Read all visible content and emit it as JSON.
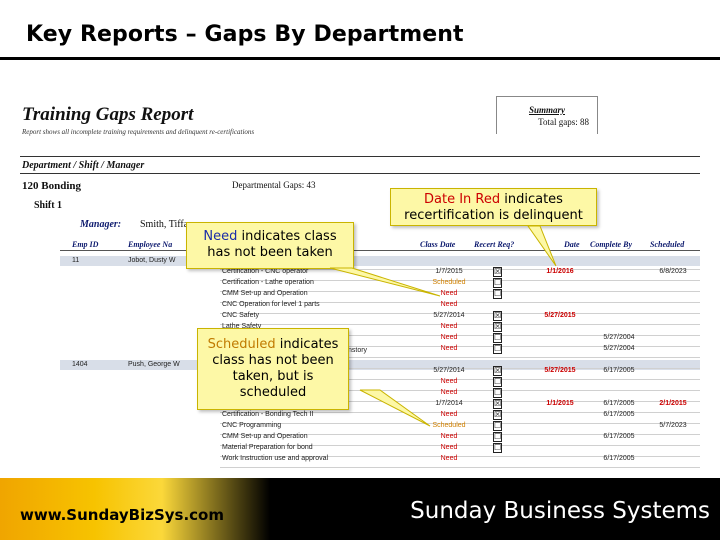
{
  "slide": {
    "title": "Key Reports – Gaps By Department"
  },
  "report": {
    "title": "Training Gaps Report",
    "subtitle": "Report shows all incomplete training requirements and delinquent re-certifications",
    "summary": {
      "title": "Summary",
      "total_gaps": "Total gaps: 88"
    },
    "group_header": "Department / Shift / Manager",
    "department": "120 Bonding",
    "department_gaps": "Departmental Gaps: 43",
    "shift": "Shift 1",
    "manager_label": "Manager:",
    "manager_name": "Smith, Tiffany",
    "columns": {
      "emp_id": "Emp ID",
      "employee_name": "Employee Na",
      "class_date": "Class Date",
      "recert_req": "Recert Req?",
      "due_date": "Date",
      "complete_by": "Complete By",
      "scheduled": "Scheduled"
    },
    "employees": [
      {
        "id": "11",
        "name": "Jobot, Dusty W"
      },
      {
        "id": "1404",
        "name": "Push, George W"
      }
    ],
    "extra_fragment": "nstory",
    "rows": [
      {
        "course": "Certification - CNC operator",
        "class_date": "1/7/2015",
        "class_style": "",
        "recert": "☒",
        "due": "1/1/2016",
        "complete_by": "",
        "scheduled": "6/8/2023",
        "sched_red": false
      },
      {
        "course": "Certification - Lathe operation",
        "class_date": "Scheduled",
        "class_style": "sched",
        "recert": "☐",
        "due": "",
        "complete_by": "",
        "scheduled": "",
        "sched_red": false
      },
      {
        "course": "CMM Set-up and Operation",
        "class_date": "Need",
        "class_style": "need",
        "recert": "☐",
        "due": "",
        "complete_by": "",
        "scheduled": "",
        "sched_red": false
      },
      {
        "course": "CNC Operation for level 1 parts",
        "class_date": "Need",
        "class_style": "need",
        "recert": "",
        "due": "",
        "complete_by": "",
        "scheduled": "",
        "sched_red": false
      },
      {
        "course": "CNC Safety",
        "class_date": "5/27/2014",
        "class_style": "",
        "recert": "☒",
        "due": "5/27/2015",
        "complete_by": "",
        "scheduled": "",
        "sched_red": false
      },
      {
        "course": "Lathe Safety",
        "class_date": "Need",
        "class_style": "need",
        "recert": "☒",
        "due": "",
        "complete_by": "",
        "scheduled": "",
        "sched_red": false
      },
      {
        "course": "",
        "class_date": "Need",
        "class_style": "need",
        "recert": "☐",
        "due": "",
        "complete_by": "5/27/2004",
        "scheduled": "",
        "sched_red": false
      },
      {
        "course": "",
        "class_date": "Need",
        "class_style": "need",
        "recert": "☐",
        "due": "",
        "complete_by": "5/27/2004",
        "scheduled": "",
        "sched_red": false
      },
      {
        "course": "",
        "class_date": "",
        "class_style": "",
        "recert": "",
        "due": "",
        "complete_by": "",
        "scheduled": "",
        "sched_red": false
      },
      {
        "course": "",
        "class_date": "5/27/2014",
        "class_style": "",
        "recert": "☒",
        "due": "5/27/2015",
        "complete_by": "6/17/2005",
        "scheduled": "",
        "sched_red": false
      },
      {
        "course": "",
        "class_date": "Need",
        "class_style": "need",
        "recert": "☐",
        "due": "",
        "complete_by": "",
        "scheduled": "",
        "sched_red": false
      },
      {
        "course": "",
        "class_date": "Need",
        "class_style": "need",
        "recert": "☐",
        "due": "",
        "complete_by": "",
        "scheduled": "",
        "sched_red": false
      },
      {
        "course": "Certification - Bonding Tech I",
        "class_date": "1/7/2014",
        "class_style": "",
        "recert": "☒",
        "due": "1/1/2015",
        "complete_by": "6/17/2005",
        "scheduled": "2/1/2015",
        "sched_red": true
      },
      {
        "course": "Certification - Bonding Tech II",
        "class_date": "Need",
        "class_style": "need",
        "recert": "☒",
        "due": "",
        "complete_by": "6/17/2005",
        "scheduled": "",
        "sched_red": false
      },
      {
        "course": "CNC Programming",
        "class_date": "Scheduled",
        "class_style": "sched",
        "recert": "☐",
        "due": "",
        "complete_by": "",
        "scheduled": "5/7/2023",
        "sched_red": false
      },
      {
        "course": "CMM Set-up and Operation",
        "class_date": "Need",
        "class_style": "need",
        "recert": "☐",
        "due": "",
        "complete_by": "6/17/2005",
        "scheduled": "",
        "sched_red": false
      },
      {
        "course": "Material Preparation for bond",
        "class_date": "Need",
        "class_style": "need",
        "recert": "☐",
        "due": "",
        "complete_by": "",
        "scheduled": "",
        "sched_red": false
      },
      {
        "course": "Work Instruction use and approval",
        "class_date": "Need",
        "class_style": "need",
        "recert": "",
        "due": "",
        "complete_by": "6/17/2005",
        "scheduled": "",
        "sched_red": false
      }
    ]
  },
  "callouts": {
    "date_red": {
      "highlight": "Date In Red",
      "rest_line1": " indicates",
      "line2": "recertification is delinquent"
    },
    "need": {
      "highlight": "Need",
      "rest_line1": " indicates class",
      "line2": "has not been taken"
    },
    "scheduled": {
      "highlight": "Scheduled",
      "rest_line1": " indicates",
      "line2": "class has not been",
      "line3": "taken, but is",
      "line4": "scheduled"
    }
  },
  "footer": {
    "url": "www.SundayBizSys.com",
    "brand": "Sunday Business Systems"
  },
  "colors": {
    "footer_gold": "#f7c300",
    "callout_yellow": "#fdf8a6",
    "need_red": "#cc0000",
    "scheduled_orange": "#d08000",
    "header_navy": "#0d1a6e"
  }
}
